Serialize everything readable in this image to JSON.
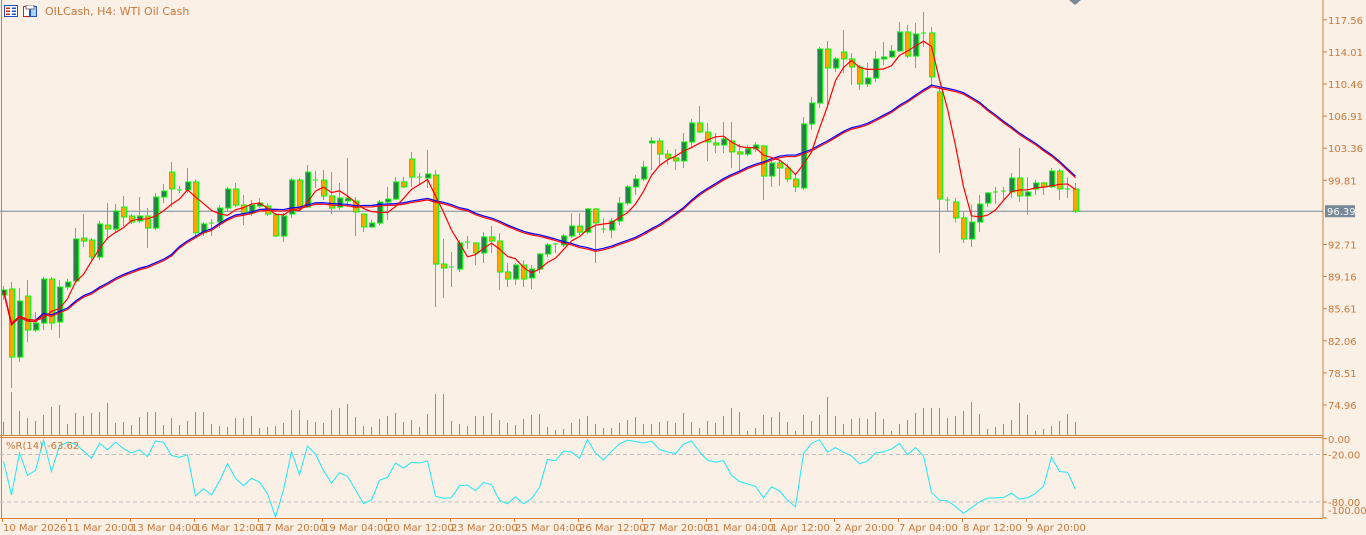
{
  "header": {
    "title": "OILCash, H4:  WTI Oil Cash",
    "icons": [
      "chart-properties-icon",
      "template-icon"
    ]
  },
  "indicator": {
    "name": "%R(14)",
    "value": "-63.62"
  },
  "colors": {
    "background": "#faf0e6",
    "axis": "#d2843a",
    "axis_text": "#c8783a",
    "bull_body": "#2e7d4f",
    "bear_body": "#ffa500",
    "candle_outline": "#00ff00",
    "volume": "#32cd32",
    "ma_fast": "#ff0000",
    "ma_slow_a": "#0000ff",
    "ma_slow_b": "#ff0000",
    "wpr_line": "#1ee8f4",
    "price_line": "#778899"
  },
  "chart_data": {
    "type": "candlestick",
    "symbol": "OILCash",
    "timeframe": "H4",
    "title": "WTI Oil Cash",
    "current_price": "96.39",
    "price_axis_ticks": [
      "117.56",
      "114.01",
      "110.46",
      "106.91",
      "103.36",
      "99.81",
      "96.39",
      "92.71",
      "89.16",
      "85.61",
      "82.06",
      "78.51",
      "74.96"
    ],
    "price_tick_values": [
      117.56,
      114.01,
      110.46,
      106.91,
      103.36,
      99.81,
      92.71,
      89.16,
      85.61,
      82.06,
      78.51,
      74.96
    ],
    "ylim": [
      74.96,
      117.56
    ],
    "indicator_axis_ticks": [
      "0.00",
      "-20.00",
      "-80.00",
      "-100.00"
    ],
    "indicator_levels": [
      -20,
      -80
    ],
    "indicator_ylim": [
      -100,
      0
    ],
    "time_axis_labels": [
      "10 Mar 2026",
      "11 Mar 20:00",
      "13 Mar 04:00",
      "16 Mar 12:00",
      "17 Mar 20:00",
      "19 Mar 04:00",
      "20 Mar 12:00",
      "23 Mar 20:00",
      "25 Mar 04:00",
      "26 Mar 12:00",
      "27 Mar 20:00",
      "31 Mar 04:00",
      "1 Apr 12:00",
      "2 Apr 20:00",
      "7 Apr 04:00",
      "8 Apr 12:00",
      "9 Apr 20:00"
    ],
    "time_label_every_n_bars": 8,
    "ohlc_fields": [
      "open",
      "high",
      "low",
      "close"
    ],
    "candles": [
      [
        87.12,
        88.12,
        86.57,
        87.68
      ],
      [
        87.79,
        88.56,
        76.84,
        80.26
      ],
      [
        80.26,
        87.89,
        79.71,
        86.46
      ],
      [
        87.01,
        88.78,
        81.92,
        83.25
      ],
      [
        83.25,
        85.25,
        83.03,
        84.02
      ],
      [
        84.02,
        89.12,
        83.25,
        88.89
      ],
      [
        88.89,
        89.12,
        83.25,
        84.02
      ],
      [
        84.14,
        88.78,
        82.37,
        88.01
      ],
      [
        88.01,
        88.89,
        87.68,
        88.56
      ],
      [
        88.67,
        94.53,
        88.67,
        93.32
      ],
      [
        93.42,
        96.08,
        92.43,
        93.09
      ],
      [
        93.21,
        93.42,
        90.99,
        91.32
      ],
      [
        91.32,
        95.31,
        90.99,
        94.98
      ],
      [
        94.86,
        97.29,
        93.21,
        94.42
      ],
      [
        94.42,
        97.18,
        94.08,
        96.41
      ],
      [
        96.85,
        98.08,
        94.75,
        95.75
      ],
      [
        95.86,
        96.08,
        94.98,
        95.19
      ],
      [
        95.31,
        97.96,
        95.09,
        95.86
      ],
      [
        95.86,
        96.74,
        92.32,
        94.53
      ],
      [
        94.53,
        98.41,
        94.31,
        97.96
      ],
      [
        97.96,
        99.41,
        97.29,
        98.62
      ],
      [
        100.72,
        101.84,
        96.85,
        98.85
      ],
      [
        98.74,
        99.19,
        98.41,
        98.74
      ],
      [
        98.74,
        101.17,
        98.41,
        99.63
      ],
      [
        99.63,
        99.86,
        93.55,
        94.0
      ],
      [
        94.0,
        95.19,
        93.65,
        94.98
      ],
      [
        94.98,
        95.53,
        93.65,
        95.09
      ],
      [
        95.19,
        97.07,
        94.53,
        96.74
      ],
      [
        96.74,
        99.08,
        96.31,
        98.85
      ],
      [
        98.85,
        99.52,
        96.85,
        97.07
      ],
      [
        97.07,
        98.19,
        94.86,
        96.19
      ],
      [
        96.19,
        97.63,
        95.86,
        97.07
      ],
      [
        96.96,
        97.85,
        96.74,
        97.29
      ],
      [
        96.96,
        97.29,
        95.86,
        96.08
      ],
      [
        95.98,
        96.19,
        93.55,
        93.65
      ],
      [
        93.65,
        96.19,
        92.99,
        95.86
      ],
      [
        96.08,
        100.06,
        95.64,
        99.84
      ],
      [
        99.84,
        100.06,
        96.52,
        96.85
      ],
      [
        96.85,
        101.51,
        96.74,
        100.72
      ],
      [
        99.73,
        100.84,
        98.96,
        99.84
      ],
      [
        99.84,
        100.95,
        97.63,
        98.08
      ],
      [
        98.08,
        100.72,
        96.08,
        96.74
      ],
      [
        96.85,
        99.52,
        96.52,
        97.85
      ],
      [
        97.52,
        102.28,
        96.85,
        97.85
      ],
      [
        97.52,
        97.96,
        93.65,
        96.31
      ],
      [
        96.08,
        96.08,
        94.08,
        94.65
      ],
      [
        94.65,
        95.42,
        94.53,
        95.09
      ],
      [
        95.09,
        97.63,
        94.86,
        97.41
      ],
      [
        97.41,
        99.08,
        95.42,
        97.74
      ],
      [
        97.74,
        100.17,
        97.63,
        99.63
      ],
      [
        99.63,
        100.17,
        98.96,
        99.08
      ],
      [
        102.16,
        102.95,
        99.08,
        100.17
      ],
      [
        100.17,
        100.62,
        99.29,
        100.1
      ],
      [
        100.06,
        103.17,
        98.96,
        100.51
      ],
      [
        100.39,
        100.95,
        85.79,
        90.55
      ],
      [
        90.55,
        93.32,
        86.79,
        90.11
      ],
      [
        90.22,
        91.89,
        88.01,
        90.22
      ],
      [
        89.99,
        93.21,
        89.67,
        92.88
      ],
      [
        92.88,
        93.65,
        92.21,
        92.99
      ],
      [
        92.88,
        92.99,
        90.44,
        91.77
      ],
      [
        91.77,
        94.08,
        90.66,
        93.55
      ],
      [
        93.55,
        94.75,
        91.77,
        93.09
      ],
      [
        93.09,
        94.0,
        87.68,
        89.67
      ],
      [
        89.67,
        90.66,
        88.01,
        88.89
      ],
      [
        88.89,
        90.66,
        88.23,
        90.44
      ],
      [
        90.44,
        90.99,
        88.01,
        88.89
      ],
      [
        89.01,
        90.44,
        87.79,
        89.99
      ],
      [
        89.99,
        91.77,
        89.55,
        91.66
      ],
      [
        91.66,
        92.88,
        91.32,
        92.67
      ],
      [
        92.67,
        92.88,
        91.77,
        92.77
      ],
      [
        92.67,
        93.88,
        92.43,
        93.65
      ],
      [
        93.65,
        96.19,
        93.42,
        94.75
      ],
      [
        94.75,
        96.19,
        93.76,
        94.08
      ],
      [
        94.08,
        96.74,
        93.88,
        96.64
      ],
      [
        96.64,
        96.74,
        90.66,
        95.09
      ],
      [
        94.42,
        95.64,
        94.0,
        94.31
      ],
      [
        94.31,
        95.64,
        93.42,
        95.31
      ],
      [
        95.31,
        97.96,
        94.86,
        97.29
      ],
      [
        97.29,
        99.29,
        97.07,
        99.08
      ],
      [
        99.08,
        100.39,
        98.19,
        99.95
      ],
      [
        99.95,
        101.95,
        99.73,
        101.28
      ],
      [
        103.94,
        104.59,
        100.95,
        104.15
      ],
      [
        104.15,
        104.49,
        101.51,
        102.71
      ],
      [
        102.71,
        103.17,
        101.51,
        102.28
      ],
      [
        102.28,
        103.28,
        100.95,
        101.95
      ],
      [
        101.95,
        105.04,
        101.17,
        104.05
      ],
      [
        104.05,
        106.59,
        103.49,
        106.15
      ],
      [
        106.15,
        108.03,
        105.04,
        105.15
      ],
      [
        105.15,
        106.15,
        101.95,
        104.05
      ],
      [
        103.94,
        105.04,
        102.83,
        103.71
      ],
      [
        103.71,
        106.26,
        102.83,
        104.38
      ],
      [
        104.15,
        106.26,
        101.17,
        102.95
      ],
      [
        102.95,
        103.82,
        100.84,
        102.71
      ],
      [
        102.71,
        103.71,
        102.49,
        103.28
      ],
      [
        103.28,
        104.05,
        102.95,
        103.71
      ],
      [
        103.61,
        103.71,
        97.63,
        100.28
      ],
      [
        100.28,
        102.05,
        99.08,
        101.72
      ],
      [
        101.72,
        102.05,
        99.19,
        101.17
      ],
      [
        101.17,
        101.61,
        99.63,
        99.95
      ],
      [
        99.95,
        100.39,
        98.52,
        99.08
      ],
      [
        98.96,
        106.81,
        98.74,
        106.04
      ],
      [
        106.04,
        109.03,
        105.38,
        108.36
      ],
      [
        108.36,
        114.55,
        107.81,
        114.33
      ],
      [
        114.33,
        115.21,
        107.81,
        112.23
      ],
      [
        112.23,
        113.45,
        111.79,
        113.23
      ],
      [
        114.0,
        116.43,
        111.68,
        113.23
      ],
      [
        113.23,
        113.89,
        110.35,
        112.34
      ],
      [
        112.34,
        112.56,
        109.79,
        110.46
      ],
      [
        110.46,
        112.78,
        110.13,
        111.12
      ],
      [
        111.12,
        114.11,
        110.68,
        113.23
      ],
      [
        113.23,
        115.11,
        112.56,
        113.45
      ],
      [
        113.45,
        114.78,
        113.34,
        114.11
      ],
      [
        114.11,
        117.32,
        114.0,
        116.21
      ],
      [
        116.21,
        116.99,
        113.34,
        113.55
      ],
      [
        113.55,
        117.21,
        112.23,
        115.99
      ],
      [
        115.99,
        118.42,
        114.55,
        116.1
      ],
      [
        116.1,
        116.76,
        110.13,
        111.24
      ],
      [
        109.57,
        110.13,
        91.77,
        97.74
      ],
      [
        97.63,
        97.96,
        96.31,
        97.52
      ],
      [
        97.41,
        97.85,
        95.19,
        95.64
      ],
      [
        95.64,
        96.31,
        92.88,
        93.32
      ],
      [
        93.32,
        97.07,
        92.43,
        95.19
      ],
      [
        95.19,
        98.19,
        94.08,
        97.18
      ],
      [
        97.29,
        98.52,
        96.85,
        98.41
      ],
      [
        98.41,
        99.08,
        97.18,
        98.52
      ],
      [
        98.52,
        99.08,
        97.63,
        98.62
      ],
      [
        98.52,
        100.62,
        97.85,
        100.06
      ],
      [
        100.06,
        103.39,
        97.41,
        98.08
      ],
      [
        98.08,
        100.17,
        95.98,
        98.52
      ],
      [
        98.85,
        99.86,
        98.19,
        99.52
      ],
      [
        99.52,
        99.63,
        98.19,
        99.08
      ],
      [
        99.08,
        101.17,
        98.96,
        100.84
      ],
      [
        100.84,
        101.06,
        97.63,
        98.85
      ],
      [
        98.85,
        100.17,
        97.85,
        98.74
      ],
      [
        98.85,
        99.52,
        96.19,
        96.39
      ]
    ],
    "volumes": [
      40,
      129,
      72,
      51,
      42,
      60,
      84,
      90,
      33,
      66,
      57,
      66,
      69,
      96,
      36,
      39,
      30,
      54,
      69,
      69,
      30,
      51,
      30,
      42,
      69,
      69,
      33,
      27,
      24,
      51,
      51,
      57,
      21,
      24,
      27,
      36,
      75,
      75,
      45,
      39,
      36,
      75,
      81,
      93,
      54,
      27,
      24,
      48,
      57,
      66,
      39,
      45,
      24,
      63,
      123,
      123,
      42,
      33,
      27,
      57,
      57,
      66,
      45,
      36,
      30,
      48,
      60,
      63,
      24,
      15,
      18,
      36,
      48,
      57,
      33,
      21,
      21,
      36,
      45,
      54,
      33,
      33,
      39,
      42,
      36,
      66,
      39,
      21,
      42,
      36,
      57,
      81,
      69,
      12,
      21,
      60,
      54,
      69,
      39,
      12,
      60,
      42,
      60,
      114,
      57,
      33,
      48,
      51,
      48,
      69,
      48,
      12,
      33,
      45,
      66,
      81,
      81,
      81,
      51,
      57,
      72,
      99,
      63,
      18,
      24,
      33,
      45,
      96,
      60,
      12,
      18,
      27,
      42,
      63,
      39
    ]
  }
}
